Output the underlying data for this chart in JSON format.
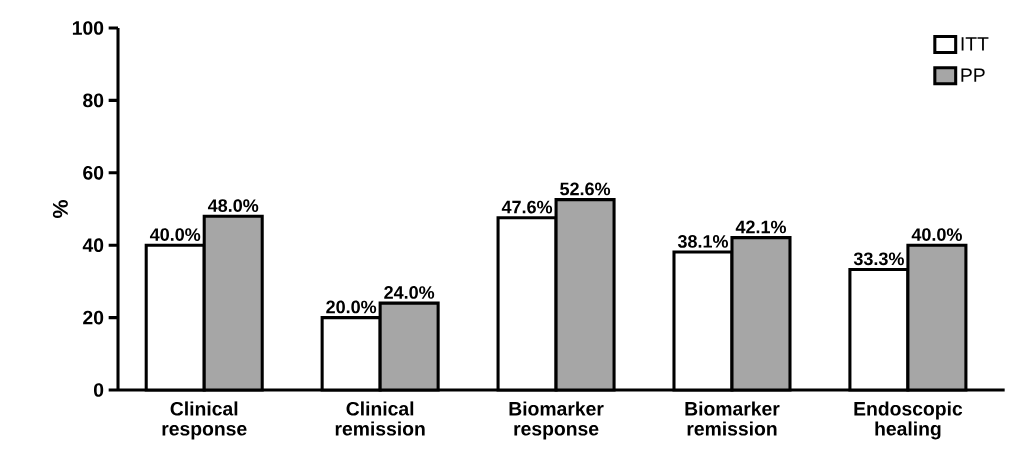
{
  "chart_data": {
    "type": "bar",
    "ylabel": "%",
    "categories": [
      "Clinical response",
      "Clinical remission",
      "Biomarker response",
      "Biomarker remission",
      "Endoscopic healing"
    ],
    "series": [
      {
        "name": "ITT",
        "color": "#ffffff",
        "values": [
          40.0,
          20.0,
          47.6,
          38.1,
          33.3
        ],
        "value_labels": [
          "40.0%",
          "20.0%",
          "47.6%",
          "38.1%",
          "33.3%"
        ]
      },
      {
        "name": "PP",
        "color": "#a6a6a6",
        "values": [
          48.0,
          24.0,
          52.6,
          42.1,
          40.0
        ],
        "value_labels": [
          "48.0%",
          "24.0%",
          "52.6%",
          "42.1%",
          "40.0%"
        ]
      }
    ],
    "ylim": [
      0,
      100
    ],
    "yticks": [
      0,
      20,
      40,
      60,
      80,
      100
    ],
    "legend": "top right"
  }
}
